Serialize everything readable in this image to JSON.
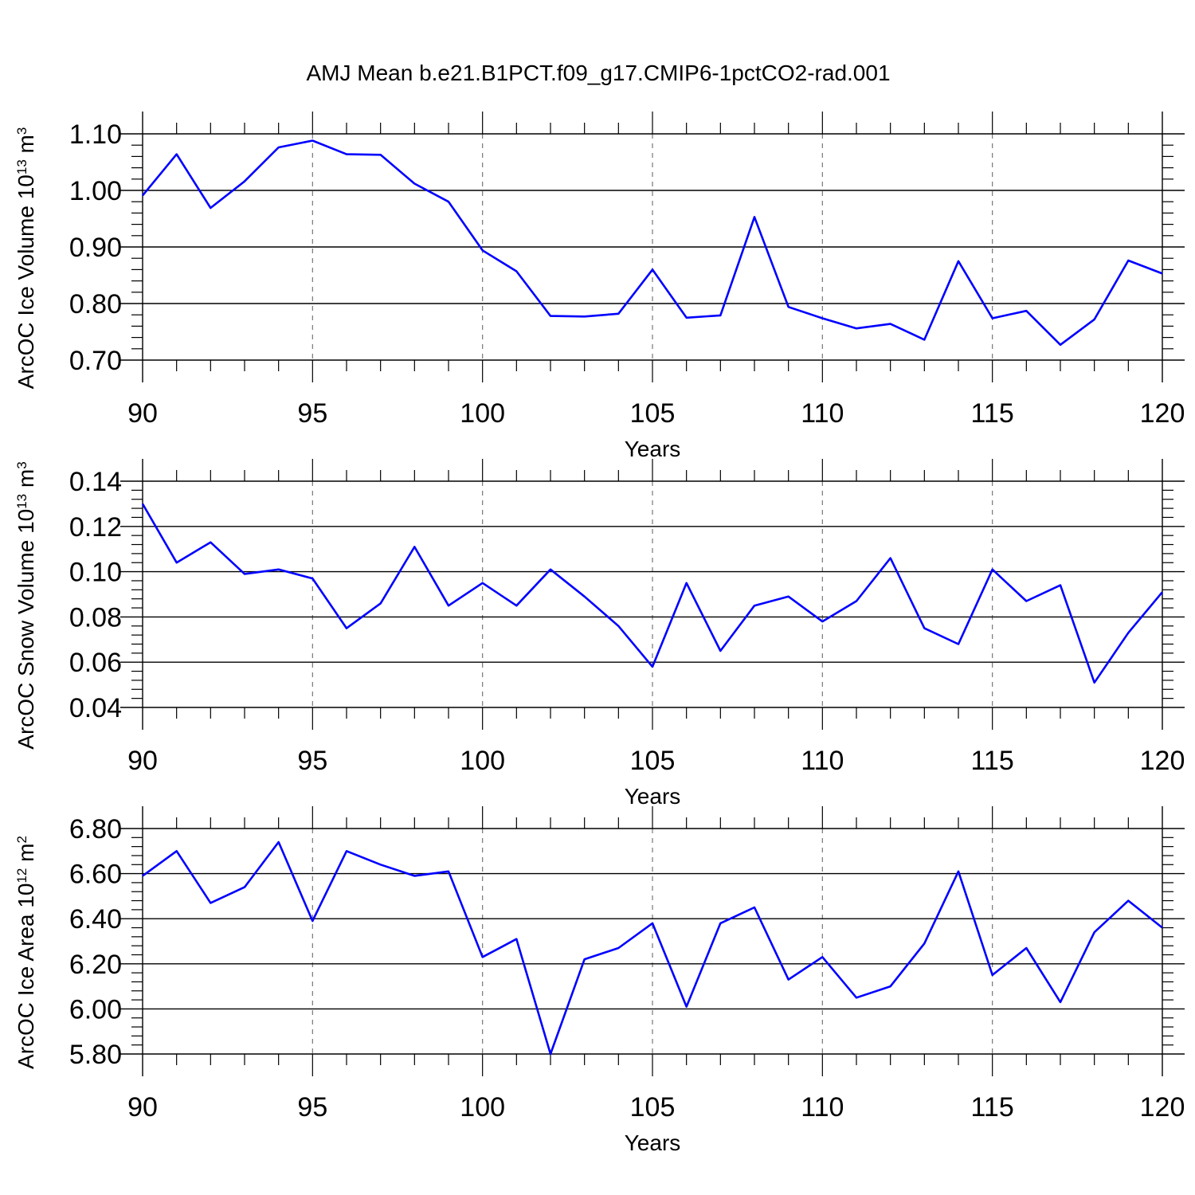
{
  "title": "AMJ Mean b.e21.B1PCT.f09_g17.CMIP6-1pctCO2-rad.001",
  "line_color": "#0000ff",
  "chart_data": [
    {
      "type": "line",
      "xlabel": "Years",
      "ylabel": {
        "text": "ArcOC Ice Volume 10",
        "exponent": "13",
        "unit": " m",
        "unit_exponent": "3"
      },
      "xlim": [
        90,
        120
      ],
      "ylim": [
        0.7,
        1.1
      ],
      "xticks": [
        90,
        95,
        100,
        105,
        110,
        115,
        120
      ],
      "yticks": [
        "0.70",
        "0.80",
        "0.90",
        "1.00",
        "1.10"
      ],
      "ytick_values": [
        0.7,
        0.8,
        0.9,
        1.0,
        1.1
      ],
      "grid": "dashed vertical lines at major x ticks",
      "x": [
        90,
        91,
        92,
        93,
        94,
        95,
        96,
        97,
        98,
        99,
        100,
        101,
        102,
        103,
        104,
        105,
        106,
        107,
        108,
        109,
        110,
        111,
        112,
        113,
        114,
        115,
        116,
        117,
        118,
        119,
        120
      ],
      "values": [
        0.991,
        1.064,
        0.969,
        1.016,
        1.076,
        1.088,
        1.064,
        1.063,
        1.012,
        0.98,
        0.894,
        0.857,
        0.778,
        0.777,
        0.782,
        0.86,
        0.775,
        0.779,
        0.953,
        0.794,
        0.774,
        0.756,
        0.764,
        0.736,
        0.875,
        0.774,
        0.787,
        0.727,
        0.772,
        0.876,
        0.853
      ]
    },
    {
      "type": "line",
      "xlabel": "Years",
      "ylabel": {
        "text": "ArcOC Snow Volume 10",
        "exponent": "13",
        "unit": " m",
        "unit_exponent": "3"
      },
      "xlim": [
        90,
        120
      ],
      "ylim": [
        0.04,
        0.14
      ],
      "xticks": [
        90,
        95,
        100,
        105,
        110,
        115,
        120
      ],
      "yticks": [
        "0.04",
        "0.06",
        "0.08",
        "0.10",
        "0.12",
        "0.14"
      ],
      "ytick_values": [
        0.04,
        0.06,
        0.08,
        0.1,
        0.12,
        0.14
      ],
      "grid": "dashed vertical lines at major x ticks",
      "x": [
        90,
        91,
        92,
        93,
        94,
        95,
        96,
        97,
        98,
        99,
        100,
        101,
        102,
        103,
        104,
        105,
        106,
        107,
        108,
        109,
        110,
        111,
        112,
        113,
        114,
        115,
        116,
        117,
        118,
        119,
        120
      ],
      "values": [
        0.13,
        0.104,
        0.113,
        0.099,
        0.101,
        0.097,
        0.075,
        0.086,
        0.111,
        0.085,
        0.095,
        0.085,
        0.101,
        0.089,
        0.076,
        0.058,
        0.095,
        0.065,
        0.085,
        0.089,
        0.078,
        0.087,
        0.106,
        0.075,
        0.068,
        0.101,
        0.087,
        0.094,
        0.051,
        0.073,
        0.091
      ]
    },
    {
      "type": "line",
      "xlabel": "Years",
      "ylabel": {
        "text": "ArcOC Ice Area 10",
        "exponent": "12",
        "unit": " m",
        "unit_exponent": "2"
      },
      "xlim": [
        90,
        120
      ],
      "ylim": [
        5.8,
        6.8
      ],
      "xticks": [
        90,
        95,
        100,
        105,
        110,
        115,
        120
      ],
      "yticks": [
        "5.80",
        "6.00",
        "6.20",
        "6.40",
        "6.60",
        "6.80"
      ],
      "ytick_values": [
        5.8,
        6.0,
        6.2,
        6.4,
        6.6,
        6.8
      ],
      "grid": "dashed vertical lines at major x ticks",
      "x": [
        90,
        91,
        92,
        93,
        94,
        95,
        96,
        97,
        98,
        99,
        100,
        101,
        102,
        103,
        104,
        105,
        106,
        107,
        108,
        109,
        110,
        111,
        112,
        113,
        114,
        115,
        116,
        117,
        118,
        119,
        120
      ],
      "values": [
        6.59,
        6.7,
        6.47,
        6.54,
        6.74,
        6.39,
        6.7,
        6.64,
        6.59,
        6.61,
        6.23,
        6.31,
        5.8,
        6.22,
        6.27,
        6.38,
        6.01,
        6.38,
        6.45,
        6.13,
        6.23,
        6.05,
        6.1,
        6.29,
        6.61,
        6.15,
        6.27,
        6.03,
        6.34,
        6.48,
        6.36
      ]
    }
  ]
}
